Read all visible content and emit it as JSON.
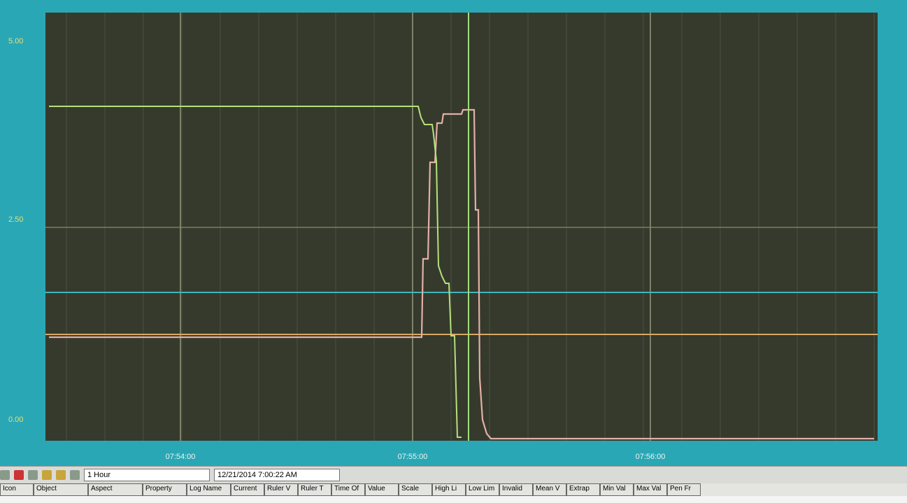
{
  "trend": {
    "y_labels_top": [
      "5.00",
      "2.50"
    ],
    "y_labels_bottom": [
      "0.00"
    ],
    "x_labels": [
      "07:54:00",
      "07:55:00",
      "07:56:00"
    ]
  },
  "toolbar": {
    "time_span": "1 Hour",
    "timestamp": "12/21/2014 7:00:22 AM"
  },
  "table": {
    "headers": [
      "Icon",
      "Object",
      "Aspect",
      "Property",
      "Log Name",
      "Current",
      "Ruler V",
      "Ruler T",
      "Time Of",
      "Value",
      "Scale",
      "High Li",
      "Low Lim",
      "Invalid",
      "Mean V",
      "Extrap",
      "Min Val",
      "Max Val",
      "Pen Fr"
    ]
  }
}
